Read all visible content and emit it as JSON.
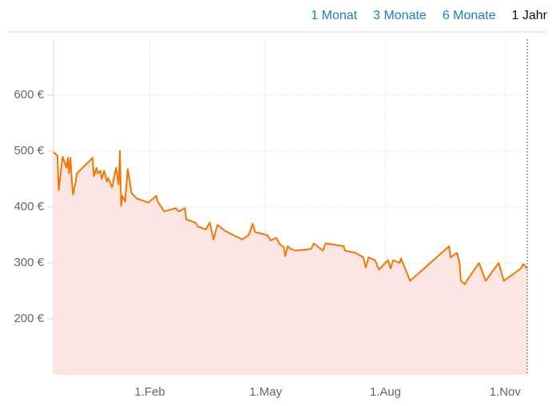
{
  "tabs": [
    {
      "label": "1 Monat",
      "active": false
    },
    {
      "label": "3 Monate",
      "active": false
    },
    {
      "label": "6 Monate",
      "active": false
    },
    {
      "label": "1 Jahr",
      "active": true
    }
  ],
  "chart_data": {
    "type": "line",
    "x": [
      0,
      3,
      4,
      7,
      10,
      11,
      12,
      13,
      14,
      15,
      17,
      18,
      30,
      31,
      33,
      34,
      36,
      37,
      39,
      41,
      42,
      45,
      48,
      50,
      51,
      52,
      53,
      55,
      57,
      60,
      64,
      73,
      79,
      80,
      85,
      94,
      96,
      101,
      102,
      109,
      111,
      117,
      120,
      123,
      125,
      126,
      132,
      145,
      150,
      153,
      155,
      164,
      167,
      171,
      174,
      177,
      178,
      180,
      182,
      186,
      198,
      200,
      207,
      209,
      223,
      224,
      232,
      238,
      240,
      242,
      247,
      250,
      257,
      259,
      261,
      266,
      267,
      274,
      304,
      305,
      310,
      312,
      313,
      316,
      318,
      327,
      332,
      342,
      346,
      359,
      361,
      364
    ],
    "series": [
      {
        "color": "#f07800",
        "fill": "#fbe6e4",
        "values": [
          498,
          492,
          430,
          490,
          470,
          488,
          460,
          488,
          450,
          422,
          445,
          460,
          488,
          455,
          470,
          460,
          465,
          450,
          465,
          445,
          452,
          435,
          470,
          440,
          500,
          402,
          420,
          410,
          468,
          425,
          415,
          408,
          420,
          410,
          392,
          398,
          392,
          398,
          378,
          372,
          365,
          360,
          372,
          342,
          360,
          368,
          357,
          342,
          350,
          370,
          355,
          350,
          340,
          345,
          333,
          328,
          312,
          330,
          325,
          322,
          325,
          335,
          322,
          335,
          330,
          322,
          318,
          310,
          292,
          310,
          305,
          288,
          305,
          290,
          305,
          300,
          308,
          268,
          330,
          310,
          318,
          300,
          268,
          262,
          270,
          300,
          268,
          300,
          268,
          290,
          298,
          290
        ]
      }
    ],
    "xlim": [
      0,
      364
    ],
    "xticks": [
      {
        "value": 74,
        "label": "1.Feb"
      },
      {
        "value": 163,
        "label": "1.May"
      },
      {
        "value": 255,
        "label": "1.Aug"
      },
      {
        "value": 347,
        "label": "1.Nov"
      }
    ],
    "ylim": [
      100,
      700
    ],
    "yticks": [
      {
        "value": 200,
        "label": "200 €"
      },
      {
        "value": 300,
        "label": "300 €"
      },
      {
        "value": 400,
        "label": "400 €"
      },
      {
        "value": 500,
        "label": "500 €"
      },
      {
        "value": 600,
        "label": "600 €"
      }
    ],
    "grid": true
  }
}
